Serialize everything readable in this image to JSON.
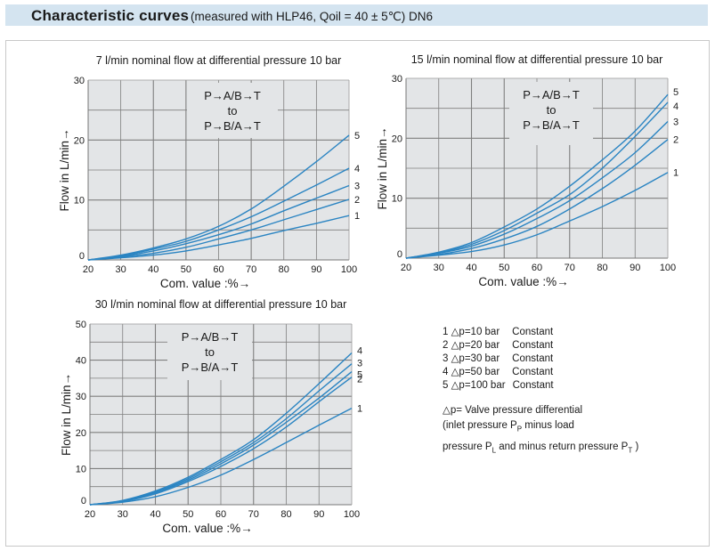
{
  "header": {
    "title": "Characteristic curves",
    "subtitle": "(measured with HLP46, Qoil = 40 ± 5℃) DN6"
  },
  "colors": {
    "curve": "#2a84c2",
    "plot_bg": "#e3e5e7",
    "grid": "#7f7f7f",
    "title_bar": "#d4e4f0"
  },
  "annotation": {
    "line1": "P→A/B→T",
    "line2": "to",
    "line3": "P→B/A→T"
  },
  "legend": {
    "items": [
      {
        "id": "1",
        "label": "1 △p=10 bar",
        "mode": "Constant"
      },
      {
        "id": "2",
        "label": "2 △p=20 bar",
        "mode": "Constant"
      },
      {
        "id": "3",
        "label": "3 △p=30 bar",
        "mode": "Constant"
      },
      {
        "id": "4",
        "label": "4 △p=50 bar",
        "mode": "Constant"
      },
      {
        "id": "5",
        "label": "5 △p=100 bar",
        "mode": "Constant"
      }
    ],
    "note_line1": "△p= Valve pressure differential",
    "note_line2_a": "(inlet pressure P",
    "note_line2_sub": "P",
    "note_line2_b": " minus load",
    "note_line3_a": "pressure P",
    "note_line3_sub1": "L",
    "note_line3_b": " and minus return pressure P",
    "note_line3_sub2": "T",
    "note_line3_c": " )"
  },
  "chart_data": [
    {
      "type": "line",
      "title": "7 l/min nominal flow at differential pressure 10 bar",
      "xlabel": "Com. value :%→",
      "ylabel": "Flow in L/min→",
      "xlim": [
        20,
        100
      ],
      "ylim": [
        0,
        30
      ],
      "xticks": [
        "20",
        "30",
        "40",
        "50",
        "60",
        "70",
        "80",
        "90",
        "100"
      ],
      "yticks": [
        "0",
        "10",
        "20",
        "30"
      ],
      "grid": true,
      "x": [
        20,
        30,
        40,
        50,
        60,
        70,
        80,
        90,
        100
      ],
      "series": [
        {
          "name": "1",
          "values": [
            0,
            0.35,
            0.8,
            1.5,
            2.5,
            3.6,
            4.9,
            6.1,
            7.4
          ]
        },
        {
          "name": "2",
          "values": [
            0,
            0.5,
            1.1,
            2.1,
            3.5,
            5.0,
            6.7,
            8.4,
            10.1
          ]
        },
        {
          "name": "3",
          "values": [
            0,
            0.6,
            1.5,
            2.7,
            4.2,
            6.0,
            8.2,
            10.3,
            12.4
          ]
        },
        {
          "name": "4",
          "values": [
            0,
            0.7,
            1.8,
            3.1,
            5.0,
            7.2,
            9.8,
            12.5,
            15.3
          ]
        },
        {
          "name": "5",
          "values": [
            0,
            0.8,
            2.0,
            3.5,
            5.6,
            8.5,
            12.3,
            16.4,
            20.8
          ]
        }
      ]
    },
    {
      "type": "line",
      "title": "15 l/min nominal flow at differential pressure 10 bar",
      "xlabel": "Com. value :%→",
      "ylabel": "Flow in L/min→",
      "xlim": [
        20,
        100
      ],
      "ylim": [
        0,
        30
      ],
      "xticks": [
        "20",
        "30",
        "40",
        "50",
        "60",
        "70",
        "80",
        "90",
        "100"
      ],
      "yticks": [
        "0",
        "10",
        "20",
        "30"
      ],
      "grid": true,
      "x": [
        20,
        30,
        40,
        50,
        60,
        70,
        80,
        90,
        100
      ],
      "series": [
        {
          "name": "1",
          "values": [
            0,
            0.5,
            1.1,
            2.2,
            3.9,
            6.2,
            8.6,
            11.3,
            14.3
          ]
        },
        {
          "name": "2",
          "values": [
            0,
            0.6,
            1.6,
            3.2,
            5.3,
            8.2,
            11.6,
            15.5,
            19.8
          ]
        },
        {
          "name": "3",
          "values": [
            0,
            0.8,
            2.0,
            4.0,
            6.6,
            9.6,
            13.4,
            17.6,
            22.8
          ]
        },
        {
          "name": "4",
          "values": [
            0,
            0.9,
            2.3,
            4.6,
            7.5,
            10.6,
            15.0,
            20.3,
            26.0
          ]
        },
        {
          "name": "5",
          "values": [
            0,
            1.0,
            2.6,
            5.2,
            8.2,
            12.0,
            16.4,
            21.2,
            27.3
          ]
        }
      ]
    },
    {
      "type": "line",
      "title": "30 l/min nominal flow at differential pressure 10 bar",
      "xlabel": "Com. value :%→",
      "ylabel": "Flow in L/min→",
      "xlim": [
        20,
        100
      ],
      "ylim": [
        0,
        50
      ],
      "xticks": [
        "20",
        "30",
        "40",
        "50",
        "60",
        "70",
        "80",
        "90",
        "100"
      ],
      "yticks": [
        "0",
        "10",
        "20",
        "30",
        "40",
        "50"
      ],
      "grid": true,
      "x": [
        20,
        30,
        40,
        50,
        60,
        70,
        80,
        90,
        100
      ],
      "series": [
        {
          "name": "1",
          "values": [
            0,
            0.7,
            2.2,
            4.8,
            8.2,
            12.5,
            17.2,
            22.0,
            26.7
          ]
        },
        {
          "name": "2",
          "values": [
            0,
            0.9,
            3.0,
            6.4,
            10.6,
            15.5,
            21.5,
            28.5,
            35.3
          ]
        },
        {
          "name": "5",
          "values": [
            0,
            1.0,
            3.3,
            6.8,
            11.3,
            16.5,
            22.8,
            29.5,
            36.8
          ]
        },
        {
          "name": "3",
          "values": [
            0,
            1.1,
            3.5,
            7.2,
            11.9,
            17.2,
            23.8,
            31.5,
            39.0
          ]
        },
        {
          "name": "4",
          "values": [
            0,
            1.2,
            3.8,
            7.6,
            12.5,
            18.0,
            25.3,
            33.5,
            42.0
          ]
        }
      ]
    }
  ]
}
